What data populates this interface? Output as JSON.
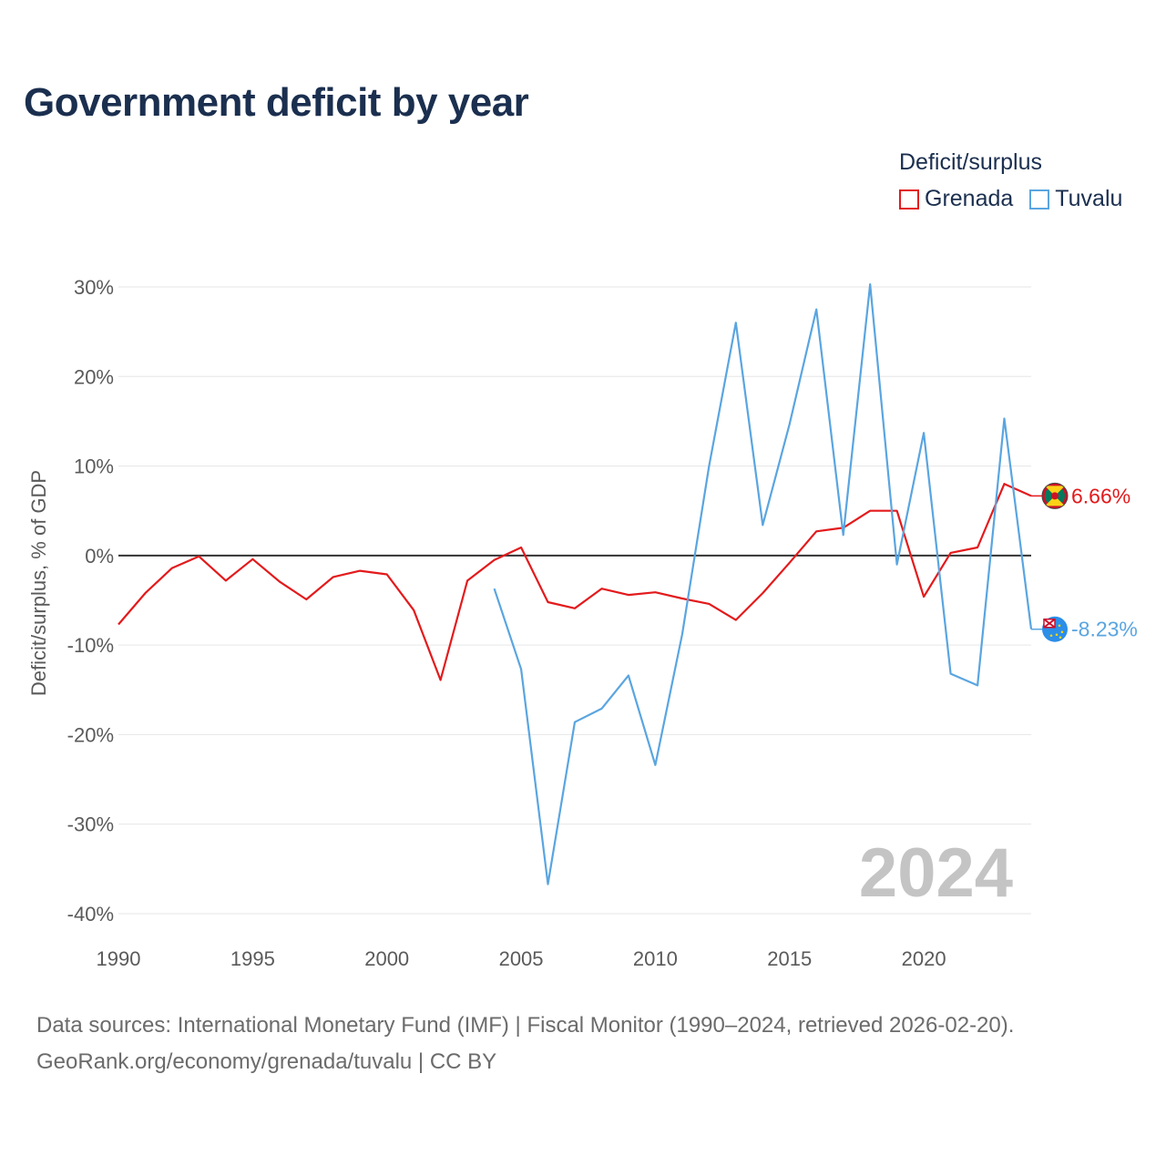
{
  "title": "Government deficit by year",
  "legend": {
    "title": "Deficit/surplus",
    "items": [
      {
        "label": "Grenada",
        "color": "#e31a1c"
      },
      {
        "label": "Tuvalu",
        "color": "#5aa5e0"
      }
    ]
  },
  "footer": {
    "line1": "Data sources: International Monetary Fund (IMF) | Fiscal Monitor (1990–2024, retrieved 2026-02-20).",
    "line2": "GeoRank.org/economy/grenada/tuvalu | CC BY"
  },
  "chart_data": {
    "type": "line",
    "title": "Government deficit by year",
    "xlabel": "",
    "ylabel": "Deficit/surplus, % of GDP",
    "xlim": [
      1990,
      2024
    ],
    "ylim": [
      -40,
      30
    ],
    "x_ticks": [
      1990,
      1995,
      2000,
      2005,
      2010,
      2015,
      2020
    ],
    "x_tick_labels": [
      "1990",
      "1995",
      "2000",
      "2005",
      "2010",
      "2015",
      "2020"
    ],
    "y_ticks": [
      30,
      20,
      10,
      0,
      -10,
      -20,
      -30,
      -40
    ],
    "y_tick_labels": [
      "30%",
      "20%",
      "10%",
      "0%",
      "-10%",
      "-20%",
      "-30%",
      "-40%"
    ],
    "grid": true,
    "legend_position": "top-right",
    "watermark_year": "2024",
    "series": [
      {
        "name": "Grenada",
        "color": "#e31a1c",
        "end_label": "6.66%",
        "flag_icon": "grenada-flag-icon",
        "x": [
          1990,
          1991,
          1992,
          1993,
          1994,
          1995,
          1996,
          1997,
          1998,
          1999,
          2000,
          2001,
          2002,
          2003,
          2004,
          2005,
          2006,
          2007,
          2008,
          2009,
          2010,
          2011,
          2012,
          2013,
          2014,
          2015,
          2016,
          2017,
          2018,
          2019,
          2020,
          2021,
          2022,
          2023,
          2024
        ],
        "values": [
          -7.7,
          -4.2,
          -1.4,
          -0.1,
          -2.8,
          -0.4,
          -2.9,
          -4.9,
          -2.4,
          -1.7,
          -2.1,
          -6.1,
          -13.9,
          -2.8,
          -0.5,
          0.9,
          -5.2,
          -5.9,
          -3.7,
          -4.4,
          -4.1,
          -4.8,
          -5.4,
          -7.2,
          -4.2,
          -0.8,
          2.7,
          3.1,
          5.0,
          5.0,
          -4.6,
          0.3,
          0.9,
          8.0,
          6.66
        ]
      },
      {
        "name": "Tuvalu",
        "color": "#5aa5e0",
        "end_label": "-8.23%",
        "flag_icon": "tuvalu-flag-icon",
        "x": [
          2004,
          2005,
          2006,
          2007,
          2008,
          2009,
          2010,
          2011,
          2012,
          2013,
          2014,
          2015,
          2016,
          2017,
          2018,
          2019,
          2020,
          2021,
          2022,
          2023,
          2024
        ],
        "values": [
          -3.7,
          -12.7,
          -36.7,
          -18.6,
          -17.1,
          -13.4,
          -23.4,
          -8.8,
          10.0,
          26.0,
          3.4,
          14.7,
          27.5,
          2.3,
          30.3,
          -1.0,
          13.7,
          -13.2,
          -14.5,
          15.3,
          -8.23
        ]
      }
    ]
  }
}
